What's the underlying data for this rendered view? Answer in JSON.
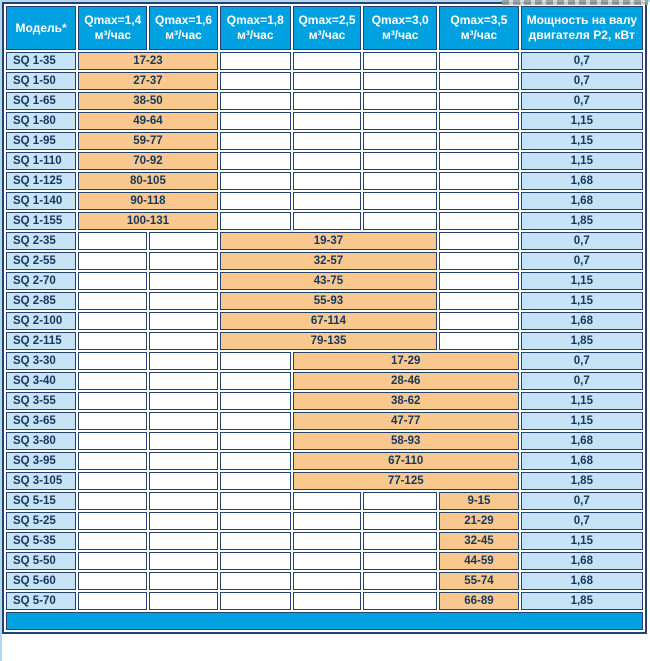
{
  "colors": {
    "header_bg": "#00A1E0",
    "cell_blue": "#C6E3F5",
    "range_orange": "#F8C88E",
    "border_navy": "#24416F",
    "text_navy": "#17365D",
    "frame_blue": "#B5D7ED",
    "photo_grey": "#9B9B9B"
  },
  "header": {
    "columns": [
      {
        "line1": "Модель*",
        "line2": ""
      },
      {
        "line1": "Qmax=1,4",
        "line2": "м³/час"
      },
      {
        "line1": "Qmax=1,6",
        "line2": "м³/час"
      },
      {
        "line1": "Qmax=1,8",
        "line2": "м³/час"
      },
      {
        "line1": "Qmax=2,5",
        "line2": "м³/час"
      },
      {
        "line1": "Qmax=3,0",
        "line2": "м³/час"
      },
      {
        "line1": "Qmax=3,5",
        "line2": "м³/час"
      },
      {
        "line1": "Мощность на валу",
        "line2": "двигателя P2, кВт"
      }
    ]
  },
  "rows": [
    {
      "model": "SQ 1-35",
      "range": "17-23",
      "power": "0,7",
      "pre": 0,
      "span": 2,
      "post": 4
    },
    {
      "model": "SQ 1-50",
      "range": "27-37",
      "power": "0,7",
      "pre": 0,
      "span": 2,
      "post": 4
    },
    {
      "model": "SQ 1-65",
      "range": "38-50",
      "power": "0,7",
      "pre": 0,
      "span": 2,
      "post": 4
    },
    {
      "model": "SQ 1-80",
      "range": "49-64",
      "power": "1,15",
      "pre": 0,
      "span": 2,
      "post": 4
    },
    {
      "model": "SQ 1-95",
      "range": "59-77",
      "power": "1,15",
      "pre": 0,
      "span": 2,
      "post": 4
    },
    {
      "model": "SQ 1-110",
      "range": "70-92",
      "power": "1,15",
      "pre": 0,
      "span": 2,
      "post": 4
    },
    {
      "model": "SQ 1-125",
      "range": "80-105",
      "power": "1,68",
      "pre": 0,
      "span": 2,
      "post": 4
    },
    {
      "model": "SQ 1-140",
      "range": "90-118",
      "power": "1,68",
      "pre": 0,
      "span": 2,
      "post": 4
    },
    {
      "model": "SQ 1-155",
      "range": "100-131",
      "power": "1,85",
      "pre": 0,
      "span": 2,
      "post": 4
    },
    {
      "model": "SQ 2-35",
      "range": "19-37",
      "power": "0,7",
      "pre": 2,
      "span": 3,
      "post": 1
    },
    {
      "model": "SQ 2-55",
      "range": "32-57",
      "power": "0,7",
      "pre": 2,
      "span": 3,
      "post": 1
    },
    {
      "model": "SQ 2-70",
      "range": "43-75",
      "power": "1,15",
      "pre": 2,
      "span": 3,
      "post": 1
    },
    {
      "model": "SQ 2-85",
      "range": "55-93",
      "power": "1,15",
      "pre": 2,
      "span": 3,
      "post": 1
    },
    {
      "model": "SQ 2-100",
      "range": "67-114",
      "power": "1,68",
      "pre": 2,
      "span": 3,
      "post": 1
    },
    {
      "model": "SQ 2-115",
      "range": "79-135",
      "power": "1,85",
      "pre": 2,
      "span": 3,
      "post": 1
    },
    {
      "model": "SQ 3-30",
      "range": "17-29",
      "power": "0,7",
      "pre": 3,
      "span": 3,
      "post": 0
    },
    {
      "model": "SQ 3-40",
      "range": "28-46",
      "power": "0,7",
      "pre": 3,
      "span": 3,
      "post": 0
    },
    {
      "model": "SQ 3-55",
      "range": "38-62",
      "power": "1,15",
      "pre": 3,
      "span": 3,
      "post": 0
    },
    {
      "model": "SQ 3-65",
      "range": "47-77",
      "power": "1,15",
      "pre": 3,
      "span": 3,
      "post": 0
    },
    {
      "model": "SQ 3-80",
      "range": "58-93",
      "power": "1,68",
      "pre": 3,
      "span": 3,
      "post": 0
    },
    {
      "model": "SQ 3-95",
      "range": "67-110",
      "power": "1,68",
      "pre": 3,
      "span": 3,
      "post": 0
    },
    {
      "model": "SQ 3-105",
      "range": "77-125",
      "power": "1,85",
      "pre": 3,
      "span": 3,
      "post": 0
    },
    {
      "model": "SQ 5-15",
      "range": "9-15",
      "power": "0,7",
      "pre": 5,
      "span": 1,
      "post": 0
    },
    {
      "model": "SQ 5-25",
      "range": "21-29",
      "power": "0,7",
      "pre": 5,
      "span": 1,
      "post": 0
    },
    {
      "model": "SQ 5-35",
      "range": "32-45",
      "power": "1,15",
      "pre": 5,
      "span": 1,
      "post": 0
    },
    {
      "model": "SQ 5-50",
      "range": "44-59",
      "power": "1,68",
      "pre": 5,
      "span": 1,
      "post": 0
    },
    {
      "model": "SQ 5-60",
      "range": "55-74",
      "power": "1,68",
      "pre": 5,
      "span": 1,
      "post": 0
    },
    {
      "model": "SQ 5-70",
      "range": "66-89",
      "power": "1,85",
      "pre": 5,
      "span": 1,
      "post": 0
    }
  ],
  "footer": {
    "text": ""
  }
}
